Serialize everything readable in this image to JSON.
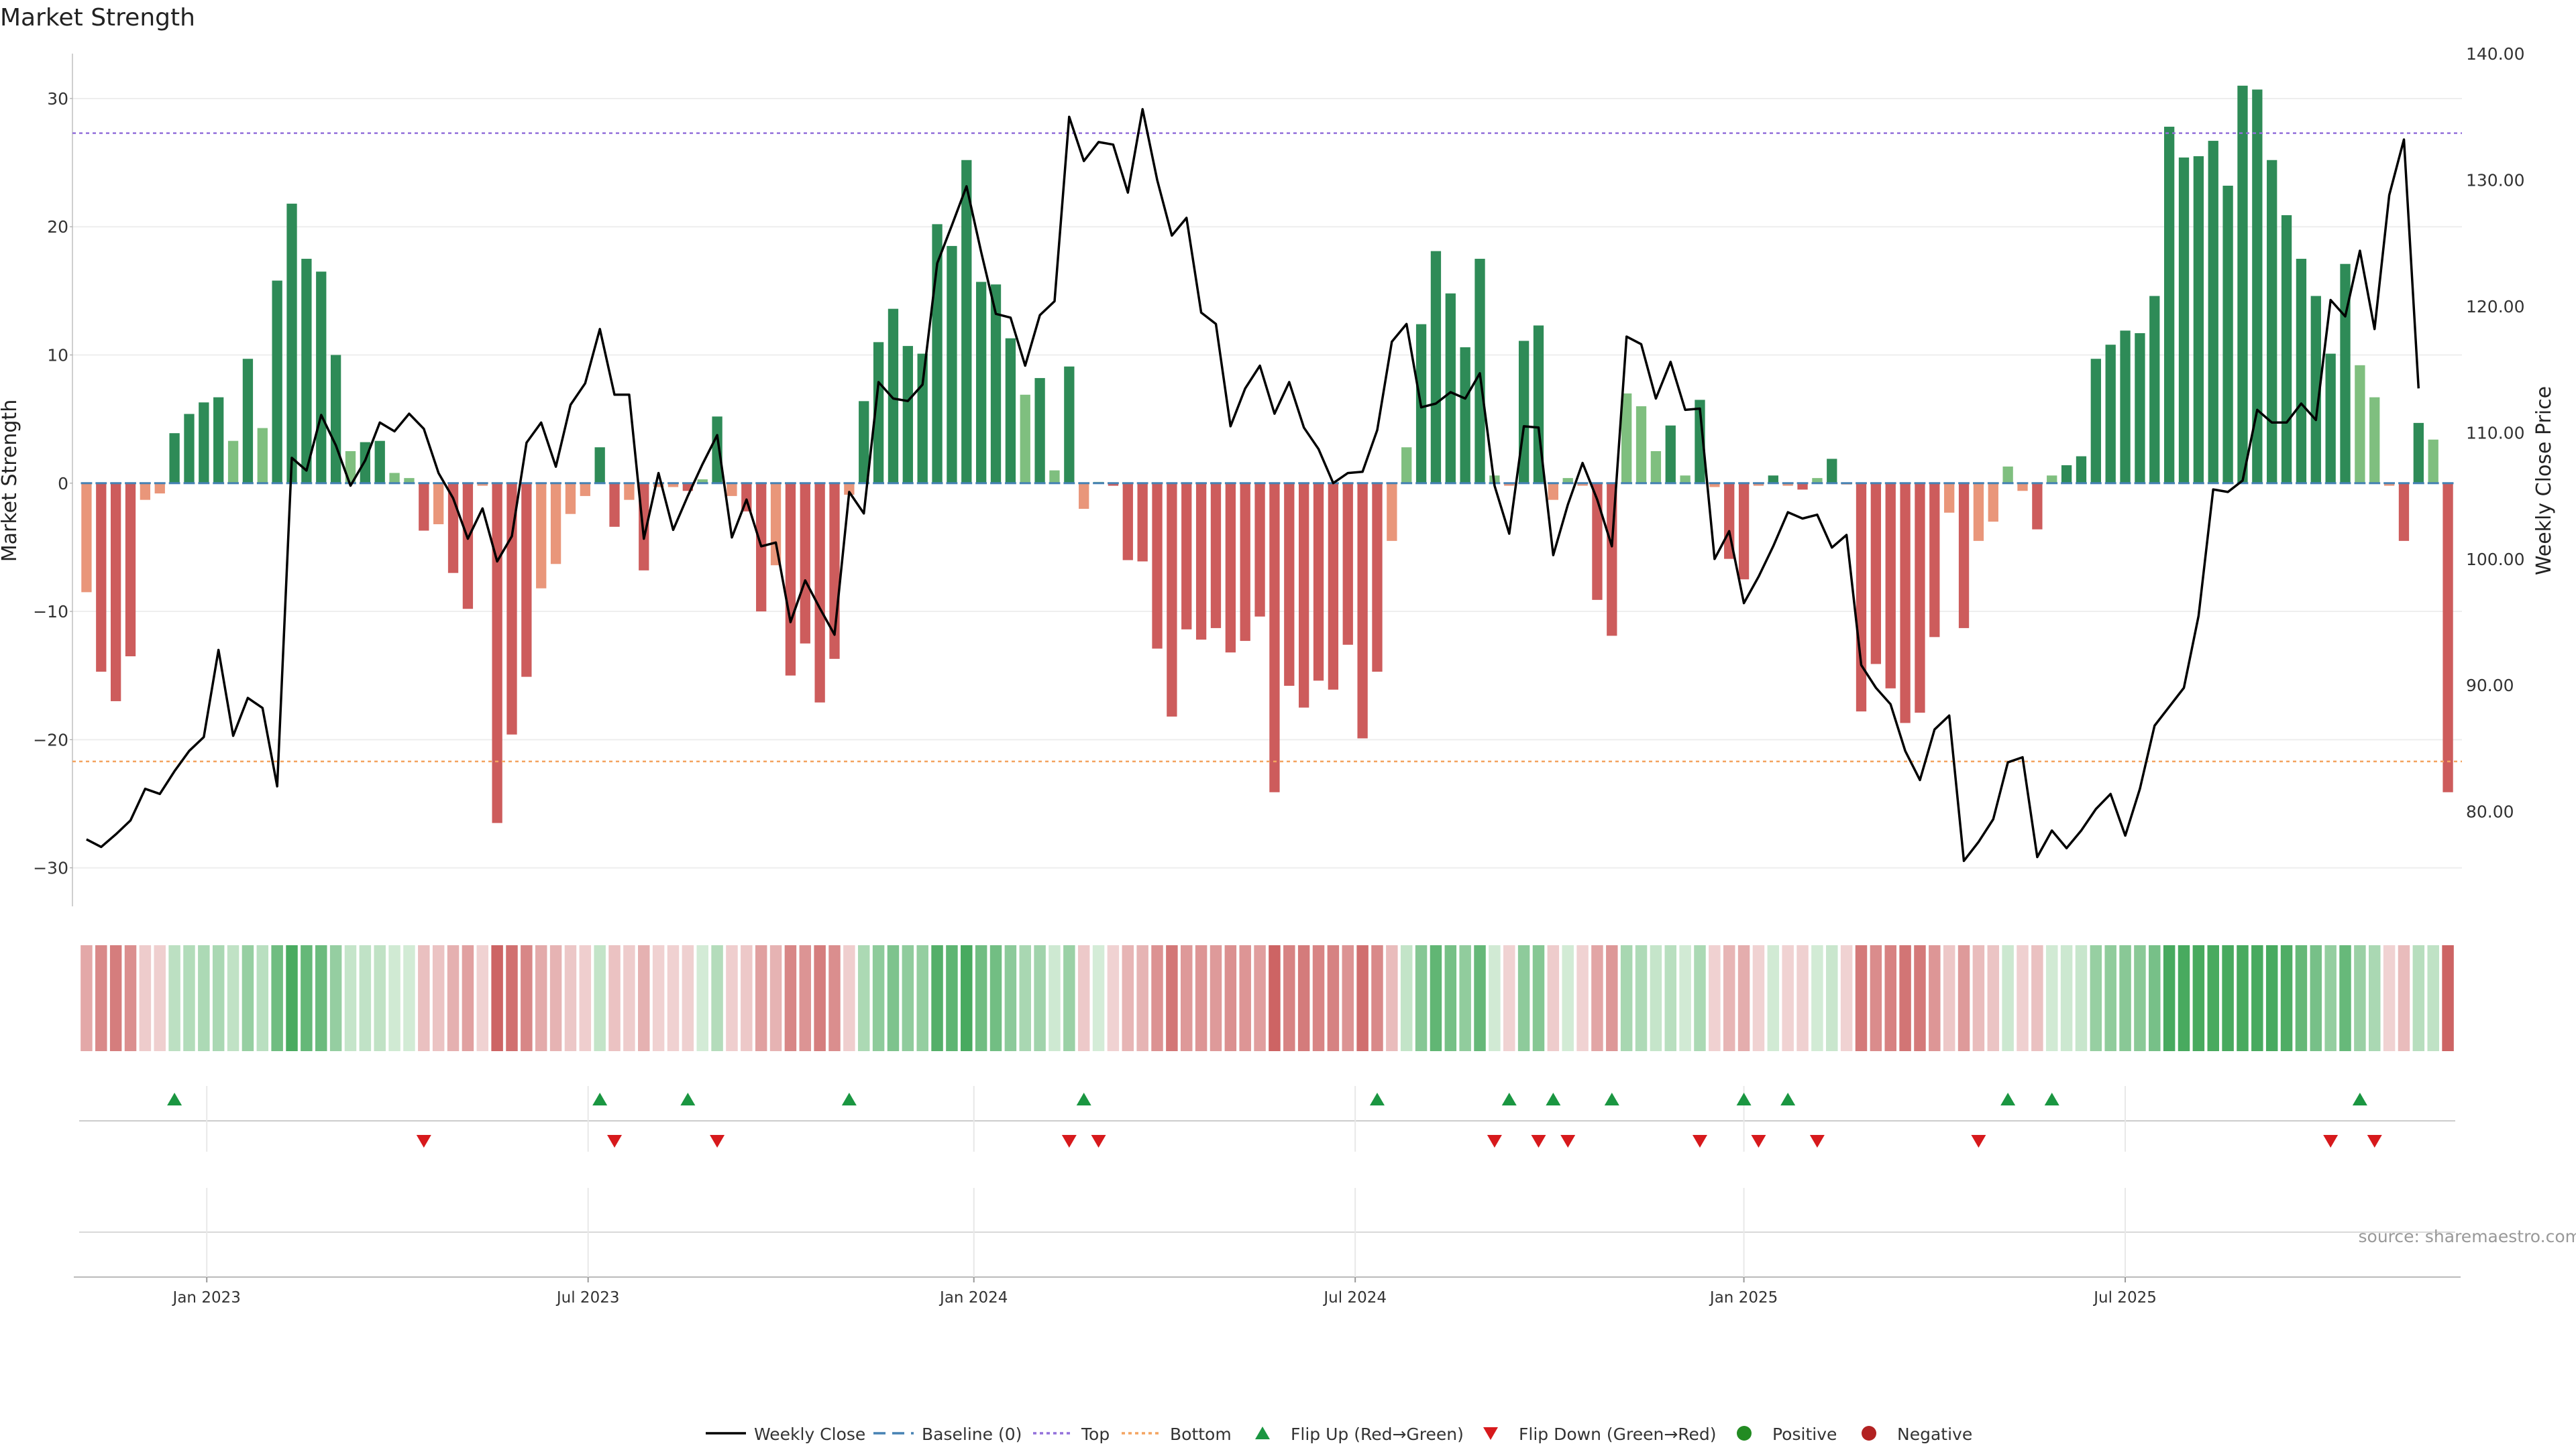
{
  "chart_data": {
    "type": "bar+line",
    "title": "Market Strength",
    "ylabel_left": "Market Strength",
    "ylabel_right": "Weekly Close Price",
    "ylim_left": [
      -33,
      33.5
    ],
    "ylim_right": [
      72.5,
      140
    ],
    "left_ticks": [
      30,
      20,
      10,
      0,
      -10,
      -20,
      -30
    ],
    "left_tick_labels": [
      "30",
      "20",
      "10",
      "0",
      "−10",
      "−20",
      "−30"
    ],
    "right_ticks": [
      140,
      130,
      120,
      110,
      100,
      90,
      80
    ],
    "right_tick_labels": [
      "140.00",
      "130.00",
      "120.00",
      "110.00",
      "100.00",
      "90.00",
      "80.00"
    ],
    "x_tick_labels": [
      "Jan 2023",
      "Jul 2023",
      "Jan 2024",
      "Jul 2024",
      "Jan 2025",
      "Jul 2025"
    ],
    "x_tick_weeks": [
      8.7,
      34.7,
      61,
      87,
      113.5,
      139.5
    ],
    "top_level": 27.3,
    "bottom_level": -21.7,
    "strength": [
      -8.5,
      -14.7,
      -17.0,
      -13.5,
      -1.3,
      -0.8,
      3.9,
      5.4,
      6.3,
      6.7,
      3.3,
      9.7,
      4.3,
      15.8,
      21.8,
      17.5,
      16.5,
      10.0,
      2.5,
      3.2,
      3.3,
      0.8,
      0.4,
      -3.7,
      -3.2,
      -7.0,
      -9.8,
      -0.2,
      -26.5,
      -19.6,
      -15.1,
      -8.2,
      -6.3,
      -2.4,
      -1.0,
      2.8,
      -3.4,
      -1.3,
      -6.8,
      -0.3,
      -0.3,
      -0.6,
      0.3,
      5.2,
      -1.0,
      -2.2,
      -10.0,
      -6.4,
      -15.0,
      -12.5,
      -17.1,
      -13.7,
      -0.9,
      6.4,
      11.0,
      13.6,
      10.7,
      10.1,
      20.2,
      18.5,
      25.2,
      15.7,
      15.5,
      11.3,
      6.9,
      8.2,
      1.0,
      9.1,
      -2.0,
      0.1,
      -0.2,
      -6.0,
      -6.1,
      -12.9,
      -18.2,
      -11.4,
      -12.2,
      -11.3,
      -13.2,
      -12.3,
      -10.4,
      -24.1,
      -15.8,
      -17.5,
      -15.4,
      -16.1,
      -12.6,
      -19.9,
      -14.7,
      -4.5,
      2.8,
      12.4,
      18.1,
      14.8,
      10.6,
      17.5,
      0.6,
      -0.2,
      11.1,
      12.3,
      -1.3,
      0.4,
      -0.2,
      -9.1,
      -11.9,
      7.0,
      6.0,
      2.5,
      4.5,
      0.6,
      6.5,
      -0.3,
      -5.9,
      -7.5,
      -0.2,
      0.6,
      -0.2,
      -0.5,
      0.4,
      1.9,
      -0.1,
      -17.8,
      -14.1,
      -16.0,
      -18.7,
      -17.9,
      -12.0,
      -2.3,
      -11.3,
      -4.5,
      -3.0,
      1.3,
      -0.6,
      -3.6,
      0.6,
      1.4,
      2.1,
      9.7,
      10.8,
      11.9,
      11.7,
      14.6,
      27.8,
      25.4,
      25.5,
      26.7,
      23.2,
      31.0,
      30.7,
      25.2,
      20.9,
      17.5,
      14.6,
      10.1,
      17.1,
      9.2,
      6.7,
      -0.2,
      -4.5,
      4.7,
      3.4,
      -24.1
    ],
    "weekly_close": [
      77.8,
      77.2,
      78.2,
      79.3,
      81.8,
      81.4,
      83.2,
      84.8,
      85.9,
      92.8,
      86.0,
      89.0,
      88.2,
      82.0,
      108.0,
      107.0,
      111.4,
      109.0,
      105.8,
      107.8,
      110.8,
      110.1,
      111.5,
      110.3,
      106.8,
      104.8,
      101.6,
      104.0,
      99.8,
      101.8,
      109.2,
      110.8,
      107.3,
      112.2,
      113.9,
      118.2,
      113.0,
      113.0,
      101.6,
      106.8,
      102.3,
      105.0,
      107.5,
      109.8,
      101.7,
      104.7,
      101.0,
      101.3,
      95.0,
      98.3,
      96.1,
      94.0,
      105.3,
      103.6,
      114.0,
      112.7,
      112.5,
      113.8,
      123.4,
      126.4,
      129.5,
      124.3,
      119.4,
      119.1,
      115.3,
      119.3,
      120.4,
      135.0,
      131.5,
      133.0,
      132.8,
      129.0,
      135.6,
      130.0,
      125.6,
      127.0,
      119.5,
      118.6,
      110.5,
      113.5,
      115.3,
      111.5,
      114.0,
      110.4,
      108.7,
      106.0,
      106.8,
      106.9,
      110.2,
      117.2,
      118.6,
      112.0,
      112.3,
      113.2,
      112.7,
      114.7,
      105.8,
      102.0,
      110.5,
      110.4,
      100.3,
      104.3,
      107.6,
      104.7,
      101.0,
      117.6,
      117.0,
      112.7,
      115.6,
      111.8,
      111.9,
      100.0,
      102.2,
      96.5,
      98.6,
      101.0,
      103.7,
      103.2,
      103.5,
      100.9,
      101.9,
      91.6,
      89.8,
      88.5,
      84.8,
      82.5,
      86.5,
      87.6,
      76.1,
      77.6,
      79.4,
      83.9,
      84.3,
      76.4,
      78.5,
      77.1,
      78.5,
      80.2,
      81.4,
      78.1,
      81.8,
      86.8,
      88.3,
      89.8,
      95.5,
      105.5,
      105.3,
      106.2,
      111.8,
      110.8,
      110.8,
      112.3,
      111.0,
      120.5,
      119.2,
      124.4,
      118.2,
      128.8,
      133.2,
      113.5
    ],
    "flip_up_weeks": [
      6,
      35,
      41,
      52,
      68,
      88,
      97,
      100,
      104,
      113,
      116,
      131,
      134,
      155
    ],
    "flip_down_weeks": [
      23,
      36,
      43,
      67,
      69,
      96,
      99,
      101,
      110,
      114,
      118,
      129,
      153,
      156
    ],
    "legend": [
      "Weekly Close",
      "Baseline (0)",
      "Top",
      "Bottom",
      "Flip Up (Red→Green)",
      "Flip Down (Green→Red)",
      "Positive",
      "Negative"
    ],
    "source": "source: sharemaestro.com"
  },
  "colors": {
    "pos_strong": "#2e8b57",
    "pos_light": "#7fbf7f",
    "neg_strong": "#cd5c5c",
    "neg_light": "#e9967a",
    "top_line": "#9370db",
    "bottom_line": "#f4a460",
    "baseline": "#4682b4",
    "flip_up": "#1a9641",
    "flip_down": "#d7191c",
    "positive_dot": "#228b22",
    "negative_dot": "#b22222",
    "close_line": "#000000"
  }
}
